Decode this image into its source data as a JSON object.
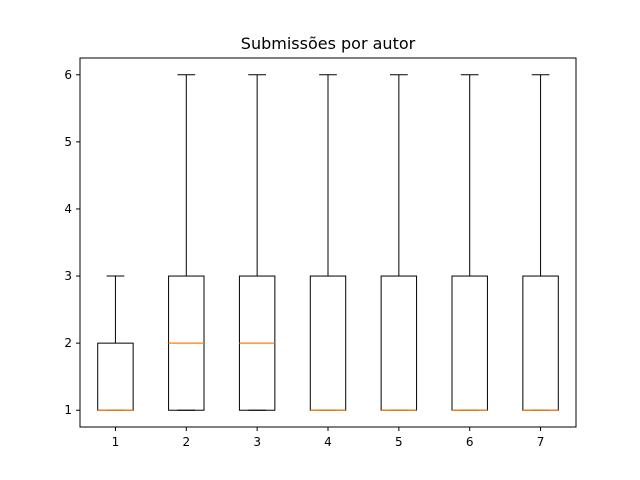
{
  "chart_data": {
    "type": "box",
    "title": "Submissões por autor",
    "xlabel": "",
    "ylabel": "",
    "categories": [
      "1",
      "2",
      "3",
      "4",
      "5",
      "6",
      "7"
    ],
    "ylim": [
      0.75,
      6.25
    ],
    "yticks": [
      1,
      2,
      3,
      4,
      5,
      6
    ],
    "grid": false,
    "boxes": [
      {
        "whislo": 1,
        "q1": 1,
        "med": 1,
        "q3": 2,
        "whishi": 3
      },
      {
        "whislo": 1,
        "q1": 1,
        "med": 2,
        "q3": 3,
        "whishi": 6
      },
      {
        "whislo": 1,
        "q1": 1,
        "med": 2,
        "q3": 3,
        "whishi": 6
      },
      {
        "whislo": 1,
        "q1": 1,
        "med": 1,
        "q3": 3,
        "whishi": 6
      },
      {
        "whislo": 1,
        "q1": 1,
        "med": 1,
        "q3": 3,
        "whishi": 6
      },
      {
        "whislo": 1,
        "q1": 1,
        "med": 1,
        "q3": 3,
        "whishi": 6
      },
      {
        "whislo": 1,
        "q1": 1,
        "med": 1,
        "q3": 3,
        "whishi": 6
      }
    ],
    "colors": {
      "box": "#000000",
      "median": "#ff7f0e"
    }
  }
}
